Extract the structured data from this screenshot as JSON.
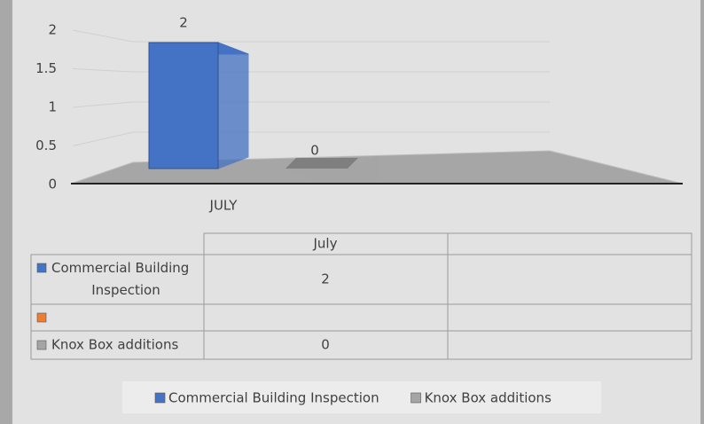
{
  "chart_data": {
    "type": "bar",
    "categories": [
      "JULY"
    ],
    "series": [
      {
        "name": "Commercial Building Inspection",
        "color": "#4472c4",
        "values": [
          2
        ]
      },
      {
        "name": null,
        "color": "#ed7d31",
        "values": [
          null
        ]
      },
      {
        "name": "Knox Box additions",
        "color": "#a5a5a5",
        "values": [
          0
        ]
      }
    ],
    "ylim": [
      0,
      2
    ],
    "yticks": [
      0,
      0.5,
      1,
      1.5,
      2
    ],
    "grid": true,
    "table": {
      "columns": [
        "July"
      ]
    }
  }
}
